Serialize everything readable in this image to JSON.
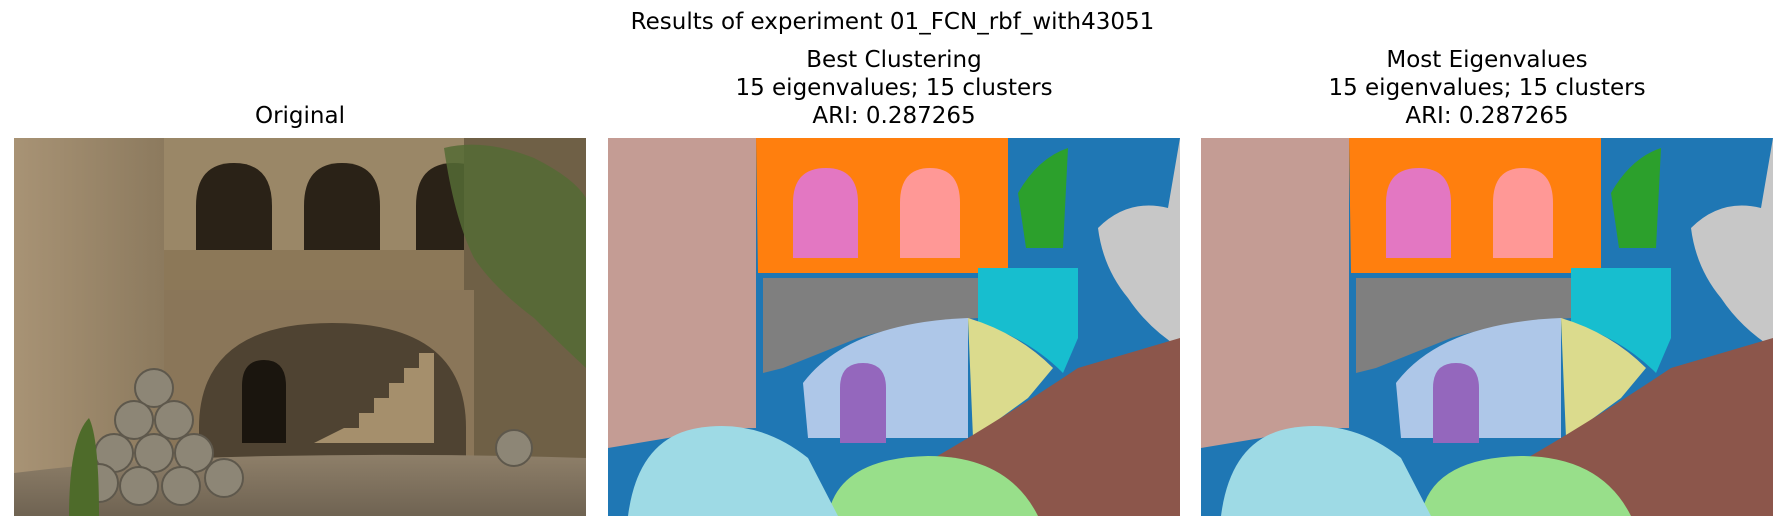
{
  "figure": {
    "suptitle": "Results of experiment 01_FCN_rbf_with43051"
  },
  "panels": [
    {
      "title_lines": [
        "Original"
      ]
    },
    {
      "title_lines": [
        "Best Clustering",
        "15 eigenvalues; 15 clusters",
        "ARI: 0.287265"
      ]
    },
    {
      "title_lines": [
        "Most Eigenvalues",
        "15 eigenvalues; 15 clusters",
        "ARI: 0.287265"
      ]
    }
  ],
  "colors": {
    "background_blue": "#1f77b4",
    "orange": "#ff7f0e",
    "green": "#2ca02c",
    "pink": "#e377c2",
    "salmon": "#ff9896",
    "purple": "#9467bd",
    "brown": "#8c564b",
    "rosy_brown": "#c49c94",
    "gray": "#7f7f7f",
    "light_gray": "#c7c7c7",
    "cyan": "#17becf",
    "light_cyan": "#9edae5",
    "light_blue": "#aec7e8",
    "khaki": "#dbdb8d",
    "light_green": "#98df8a"
  }
}
